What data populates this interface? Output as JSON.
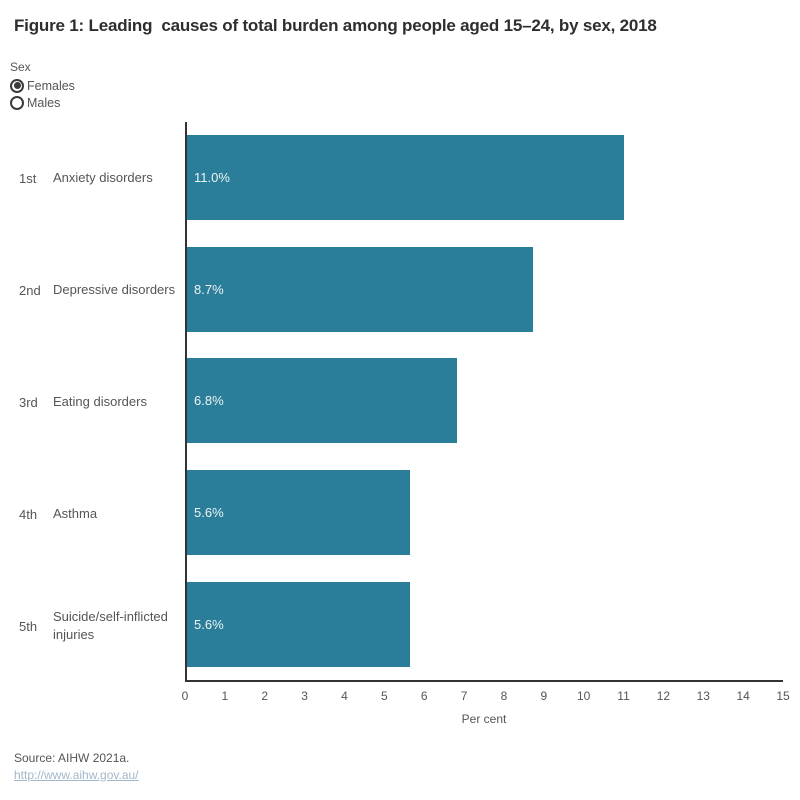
{
  "title": "Figure 1: Leading  causes of total burden among people aged 15–24, by sex, 2018",
  "filter": {
    "label": "Sex",
    "options": [
      {
        "label": "Females",
        "selected": true
      },
      {
        "label": "Males",
        "selected": false
      }
    ]
  },
  "chart_data": {
    "type": "bar",
    "orientation": "horizontal",
    "ranks": [
      "1st",
      "2nd",
      "3rd",
      "4th",
      "5th"
    ],
    "categories": [
      "Anxiety disorders",
      "Depressive disorders",
      "Eating disorders",
      "Asthma",
      "Suicide/self-inflicted injuries"
    ],
    "values": [
      11.0,
      8.7,
      6.8,
      5.6,
      5.6
    ],
    "value_labels": [
      "11.0%",
      "8.7%",
      "6.8%",
      "5.6%",
      "5.6%"
    ],
    "xlabel": "Per cent",
    "xlim": [
      0,
      15
    ],
    "x_ticks": [
      0,
      1,
      2,
      3,
      4,
      5,
      6,
      7,
      8,
      9,
      10,
      11,
      12,
      13,
      14,
      15
    ],
    "bar_color": "#2A7E99",
    "axis_color": "#333333",
    "grid": false,
    "legend": "none"
  },
  "footer": {
    "source": "Source: AIHW 2021a.",
    "link": "http://www.aihw.gov.au/"
  }
}
